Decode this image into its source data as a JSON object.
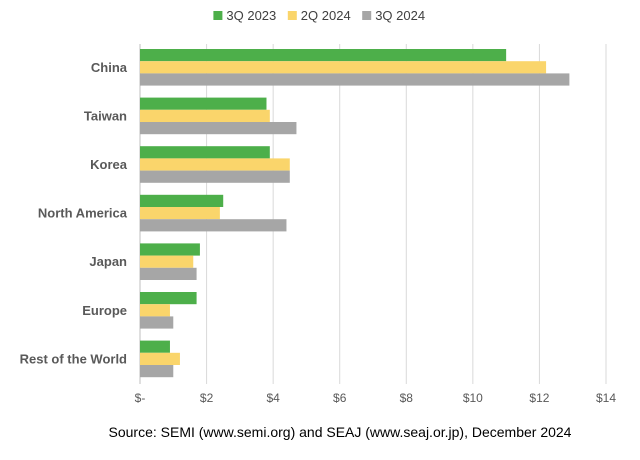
{
  "chart_data": {
    "type": "bar",
    "orientation": "horizontal",
    "categories": [
      "China",
      "Taiwan",
      "Korea",
      "North America",
      "Japan",
      "Europe",
      "Rest of the World"
    ],
    "series": [
      {
        "name": "3Q 2023",
        "color": "#4daf4a",
        "values": [
          11.0,
          3.8,
          3.9,
          2.5,
          1.8,
          1.7,
          0.9
        ]
      },
      {
        "name": "2Q 2024",
        "color": "#fad56b",
        "values": [
          12.2,
          3.9,
          4.5,
          2.4,
          1.6,
          0.9,
          1.2
        ]
      },
      {
        "name": "3Q 2024",
        "color": "#a6a6a6",
        "values": [
          12.9,
          4.7,
          4.5,
          4.4,
          1.7,
          1.0,
          1.0
        ]
      }
    ],
    "xlim": [
      0,
      14
    ],
    "x_ticks": [
      0,
      2,
      4,
      6,
      8,
      10,
      12,
      14
    ],
    "x_tick_labels": [
      "$-",
      "$2",
      "$4",
      "$6",
      "$8",
      "$10",
      "$12",
      "$14"
    ],
    "grid": "vertical",
    "legend_position": "top",
    "source": "Source: SEMI (www.semi.org) and SEAJ (www.seaj.or.jp), December 2024"
  }
}
